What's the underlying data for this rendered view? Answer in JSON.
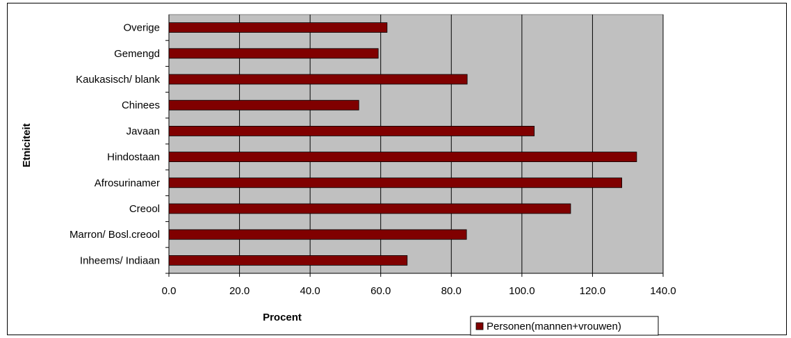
{
  "chart_data": {
    "type": "bar",
    "orientation": "horizontal",
    "categories": [
      "Inheems/ Indiaan",
      "Marron/ Bosl.creool",
      "Creool",
      "Afrosurinamer",
      "Hindostaan",
      "Javaan",
      "Chinees",
      "Kaukasisch/ blank",
      "Gemengd",
      "Overige"
    ],
    "series": [
      {
        "name": "Personen(mannen+vrouwen)",
        "values": [
          67.5,
          84.3,
          113.8,
          128.3,
          132.5,
          103.5,
          53.8,
          84.5,
          59.3,
          61.8
        ],
        "color": "#800000"
      }
    ],
    "xlabel": "Procent",
    "ylabel": "Etniciteit",
    "xlim": [
      0,
      140
    ],
    "xticks": [
      "0.0",
      "20.0",
      "40.0",
      "60.0",
      "80.0",
      "100.0",
      "120.0",
      "140.0"
    ],
    "grid": "vertical",
    "plot_background": "#c0c0c0",
    "legend_position": "bottom-right"
  }
}
